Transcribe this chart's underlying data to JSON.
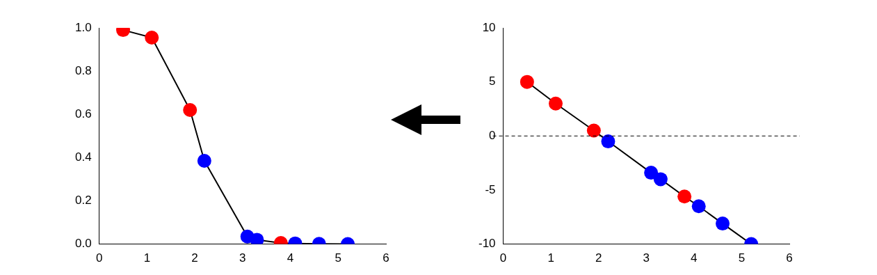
{
  "chart_data": [
    {
      "type": "line",
      "x": [
        0.5,
        1.1,
        1.9,
        2.2,
        3.1,
        3.3,
        3.8,
        4.1,
        4.6,
        5.2
      ],
      "marker": "circle",
      "line_style": "solid",
      "grid": false,
      "legend": false,
      "series": [
        {
          "color": "#000000",
          "colors": [
            "#ff0000",
            "#ff0000",
            "#ff0000",
            "#0000ff",
            "#0000ff",
            "#0000ff",
            "#ff0000",
            "#0000ff",
            "#0000ff",
            "#0000ff"
          ],
          "values": [
            0.99,
            0.955,
            0.62,
            0.385,
            0.035,
            0.02,
            0.005,
            0.003,
            0.001,
            0.0
          ]
        }
      ],
      "xlim": [
        0,
        6
      ],
      "xticks": [
        0,
        1,
        2,
        3,
        4,
        5,
        6
      ],
      "ylim": [
        0,
        1
      ],
      "yticks": [
        {
          "value": 0,
          "label": "0.0"
        },
        {
          "value": 0.2,
          "label": "0.2"
        },
        {
          "value": 0.4,
          "label": "0.4"
        },
        {
          "value": 0.6,
          "label": "0.6"
        },
        {
          "value": 0.8,
          "label": "0.8"
        },
        {
          "value": 1,
          "label": "1.0"
        }
      ]
    },
    {
      "type": "line",
      "x": [
        0.5,
        1.1,
        1.9,
        2.2,
        3.1,
        3.3,
        3.8,
        4.1,
        4.6,
        5.2
      ],
      "marker": "circle",
      "line_style": "solid",
      "grid": false,
      "legend": false,
      "series": [
        {
          "color": "#000000",
          "colors": [
            "#ff0000",
            "#ff0000",
            "#ff0000",
            "#0000ff",
            "#0000ff",
            "#0000ff",
            "#ff0000",
            "#0000ff",
            "#0000ff",
            "#0000ff"
          ],
          "values": [
            5.0,
            3.0,
            0.5,
            -0.5,
            -3.4,
            -4.0,
            -5.6,
            -6.5,
            -8.1,
            -10.0
          ]
        }
      ],
      "xlim": [
        0,
        6
      ],
      "xticks": [
        0,
        1,
        2,
        3,
        4,
        5,
        6
      ],
      "ylim": [
        -10,
        10
      ],
      "yticks": [
        -10,
        -5,
        0,
        5,
        10
      ],
      "ref_lines": [
        {
          "axis": "y",
          "value": 0,
          "color": "#000000",
          "line_style": "dashed"
        }
      ]
    }
  ]
}
